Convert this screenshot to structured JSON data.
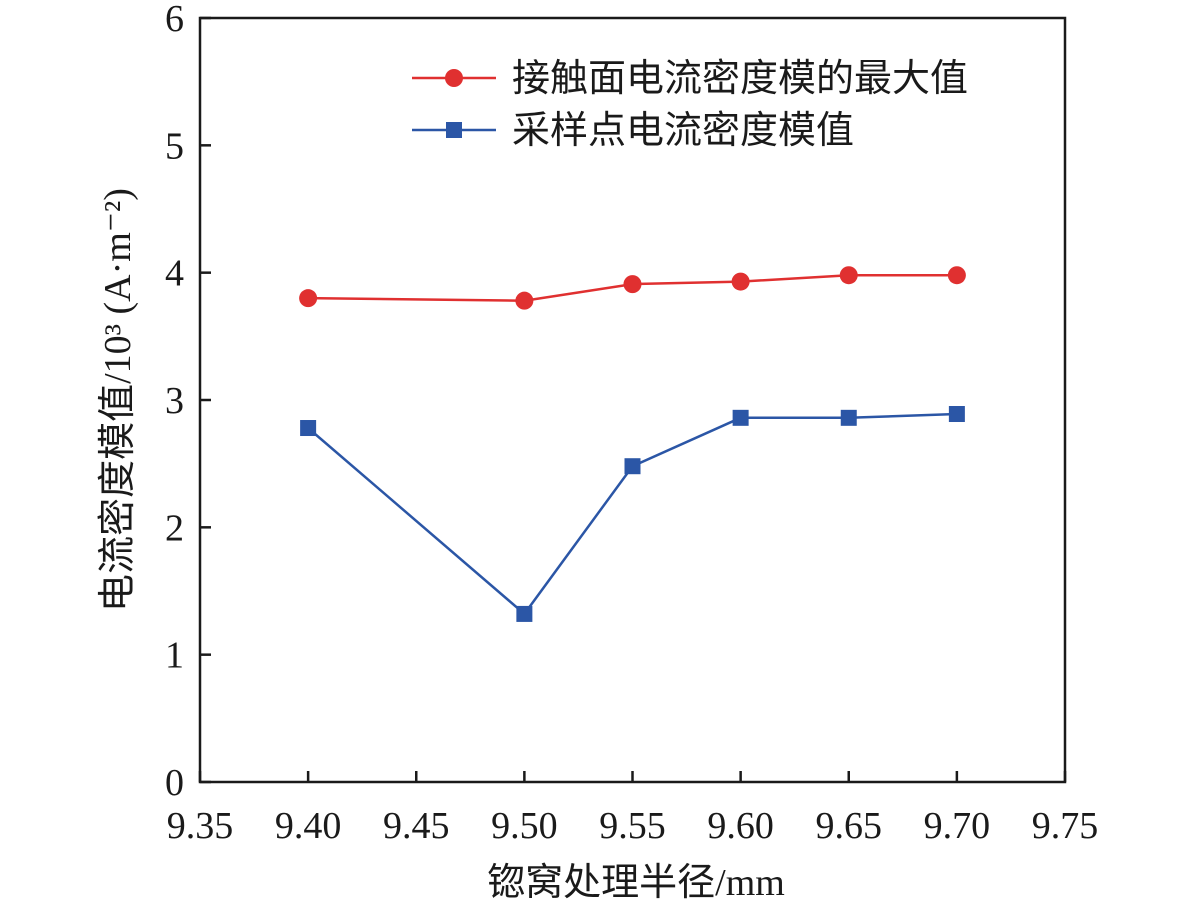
{
  "chart_data": {
    "type": "line",
    "title": "",
    "xlabel": "锪窝处理半径/mm",
    "ylabel": "电流密度模值/10³ (A·m⁻²)",
    "xlim": [
      9.35,
      9.75
    ],
    "ylim": [
      0,
      6
    ],
    "xticks": [
      "9.35",
      "9.40",
      "9.45",
      "9.50",
      "9.55",
      "9.60",
      "9.65",
      "9.70",
      "9.75"
    ],
    "yticks": [
      "0",
      "1",
      "2",
      "3",
      "4",
      "5",
      "6"
    ],
    "grid": false,
    "legend_position": "top-right",
    "series": [
      {
        "name": "接触面电流密度模的最大值",
        "color": "#e03030",
        "marker": "circle",
        "x": [
          9.4,
          9.5,
          9.55,
          9.6,
          9.65,
          9.7
        ],
        "y": [
          3.8,
          3.78,
          3.91,
          3.93,
          3.98,
          3.98
        ]
      },
      {
        "name": "采样点电流密度模值",
        "color": "#2b56a6",
        "marker": "square",
        "x": [
          9.4,
          9.5,
          9.55,
          9.6,
          9.65,
          9.7
        ],
        "y": [
          2.78,
          1.32,
          2.48,
          2.86,
          2.86,
          2.89
        ]
      }
    ]
  }
}
